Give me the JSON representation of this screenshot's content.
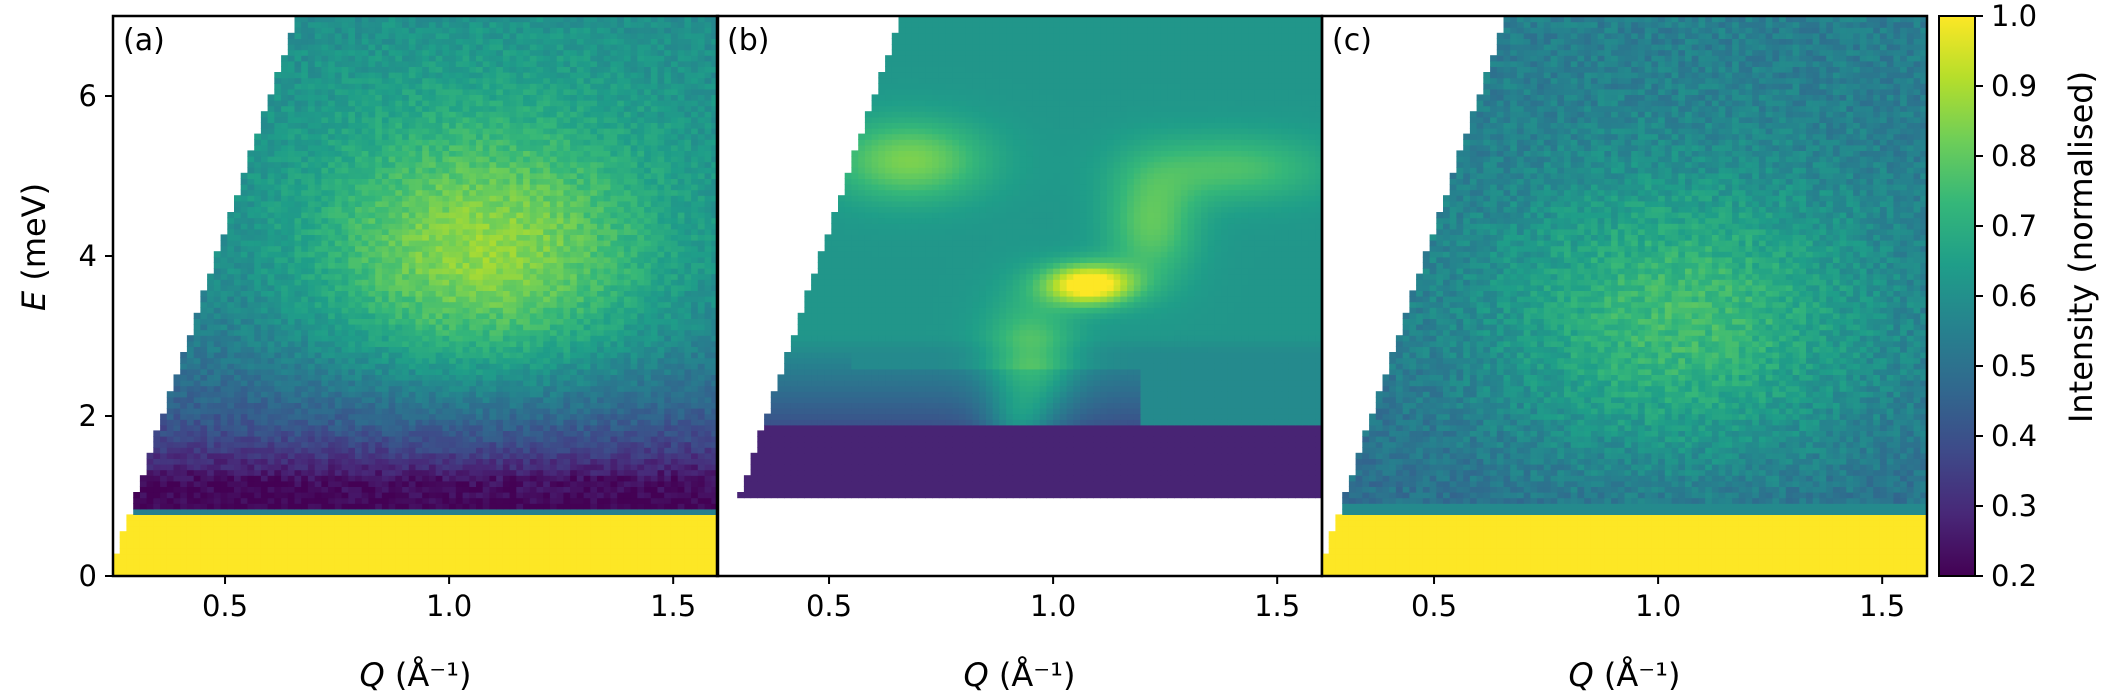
{
  "figure": {
    "colorbar_label": "Intensity (normalised)",
    "ylabel_italic": "E",
    "ylabel_rest": " (meV)"
  },
  "chart_data": [
    {
      "type": "heatmap",
      "panel": "(a)",
      "source": "measured",
      "xlabel": "Q (Å⁻¹)",
      "ylabel": "E (meV)",
      "xlim": [
        0.25,
        1.6
      ],
      "ylim": [
        0,
        7
      ],
      "xticks": [
        0.5,
        1.0,
        1.5
      ],
      "xtick_labels": [
        "0.5",
        "1.0",
        "1.5"
      ],
      "yticks": [
        0,
        2,
        4,
        6
      ],
      "ytick_labels": [
        "0",
        "2",
        "4",
        "6"
      ],
      "elastic_line_top_meV": 0.75,
      "peak": {
        "Q": 1.08,
        "E": 3.9,
        "intensity": 0.82
      }
    },
    {
      "type": "heatmap",
      "panel": "(b)",
      "source": "model",
      "xlabel": "Q (Å⁻¹)",
      "xlim": [
        0.25,
        1.6
      ],
      "ylim": [
        0,
        7
      ],
      "xticks": [
        0.5,
        1.0,
        1.5
      ],
      "xtick_labels": [
        "0.5",
        "1.0",
        "1.5"
      ],
      "min_energy_meV": 1.0,
      "peak": {
        "Q": 1.08,
        "E": 3.65,
        "intensity": 1.0
      }
    },
    {
      "type": "heatmap",
      "panel": "(c)",
      "source": "measured",
      "xlabel": "Q (Å⁻¹)",
      "xlim": [
        0.25,
        1.6
      ],
      "ylim": [
        0,
        7
      ],
      "xticks": [
        0.5,
        1.0,
        1.5
      ],
      "xtick_labels": [
        "0.5",
        "1.0",
        "1.5"
      ],
      "elastic_line_top_meV": 0.8,
      "peak": {
        "Q": 1.05,
        "E": 3.2,
        "intensity": 0.8
      }
    },
    {
      "type": "colorbar",
      "colormap": "viridis",
      "range": [
        0.2,
        1.0
      ],
      "ticks": [
        0.2,
        0.3,
        0.4,
        0.5,
        0.6,
        0.7,
        0.8,
        0.9,
        1.0
      ],
      "tick_labels": [
        "0.2",
        "0.3",
        "0.4",
        "0.5",
        "0.6",
        "0.7",
        "0.8",
        "0.9",
        "1.0"
      ],
      "label": "Intensity (normalised)"
    }
  ]
}
